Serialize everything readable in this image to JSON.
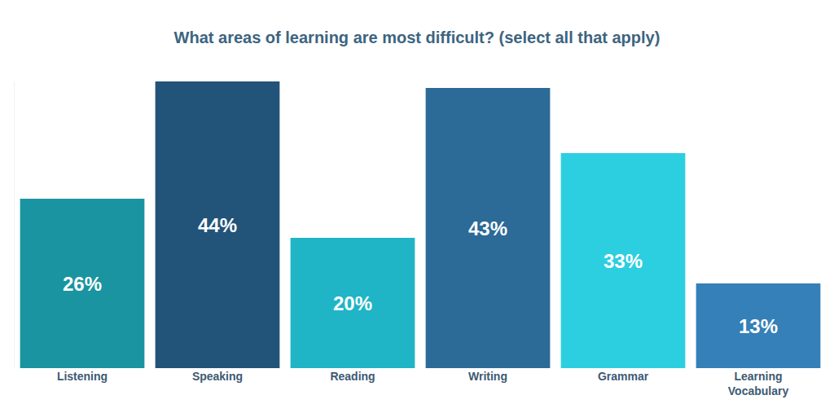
{
  "chart_data": {
    "type": "bar",
    "title": "What areas of learning are most difficult? (select all that apply)",
    "categories": [
      "Listening",
      "Speaking",
      "Reading",
      "Writing",
      "Grammar",
      "Learning Vocabulary"
    ],
    "values": [
      26,
      44,
      20,
      43,
      33,
      13
    ],
    "value_labels": [
      "26%",
      "44%",
      "20%",
      "43%",
      "33%",
      "13%"
    ],
    "colors": [
      "#1a94a0",
      "#225378",
      "#1fb5c7",
      "#2c6a97",
      "#2ccfe0",
      "#3580b8"
    ],
    "ylim": [
      0,
      44
    ],
    "yticks": [],
    "grid": false,
    "data_labels": true,
    "tick_labels": "x"
  }
}
